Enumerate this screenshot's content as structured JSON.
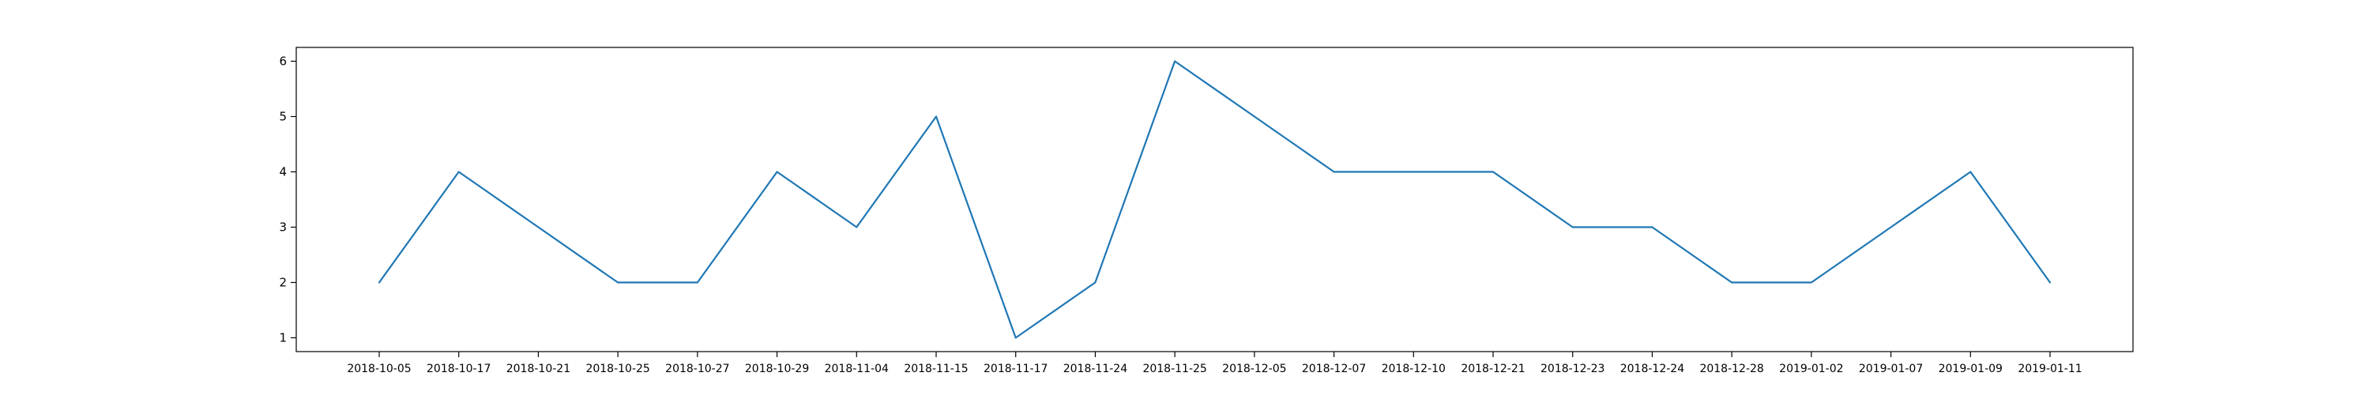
{
  "chart_data": {
    "type": "line",
    "title": "",
    "xlabel": "",
    "ylabel": "",
    "categories": [
      "2018-10-05",
      "2018-10-17",
      "2018-10-21",
      "2018-10-25",
      "2018-10-27",
      "2018-10-29",
      "2018-11-04",
      "2018-11-15",
      "2018-11-17",
      "2018-11-24",
      "2018-11-25",
      "2018-12-05",
      "2018-12-07",
      "2018-12-10",
      "2018-12-21",
      "2018-12-23",
      "2018-12-24",
      "2018-12-28",
      "2019-01-02",
      "2019-01-07",
      "2019-01-09",
      "2019-01-11"
    ],
    "series": [
      {
        "values": [
          2,
          4,
          3,
          2,
          2,
          4,
          3,
          5,
          1,
          2,
          6,
          5,
          4,
          4,
          4,
          3,
          3,
          2,
          2,
          3,
          4,
          2
        ],
        "color": "#1f77b4"
      }
    ],
    "yticks": [
      1,
      2,
      3,
      4,
      5,
      6
    ],
    "ylim": [
      0.75,
      6.25
    ],
    "grid": false,
    "legend": "none"
  }
}
